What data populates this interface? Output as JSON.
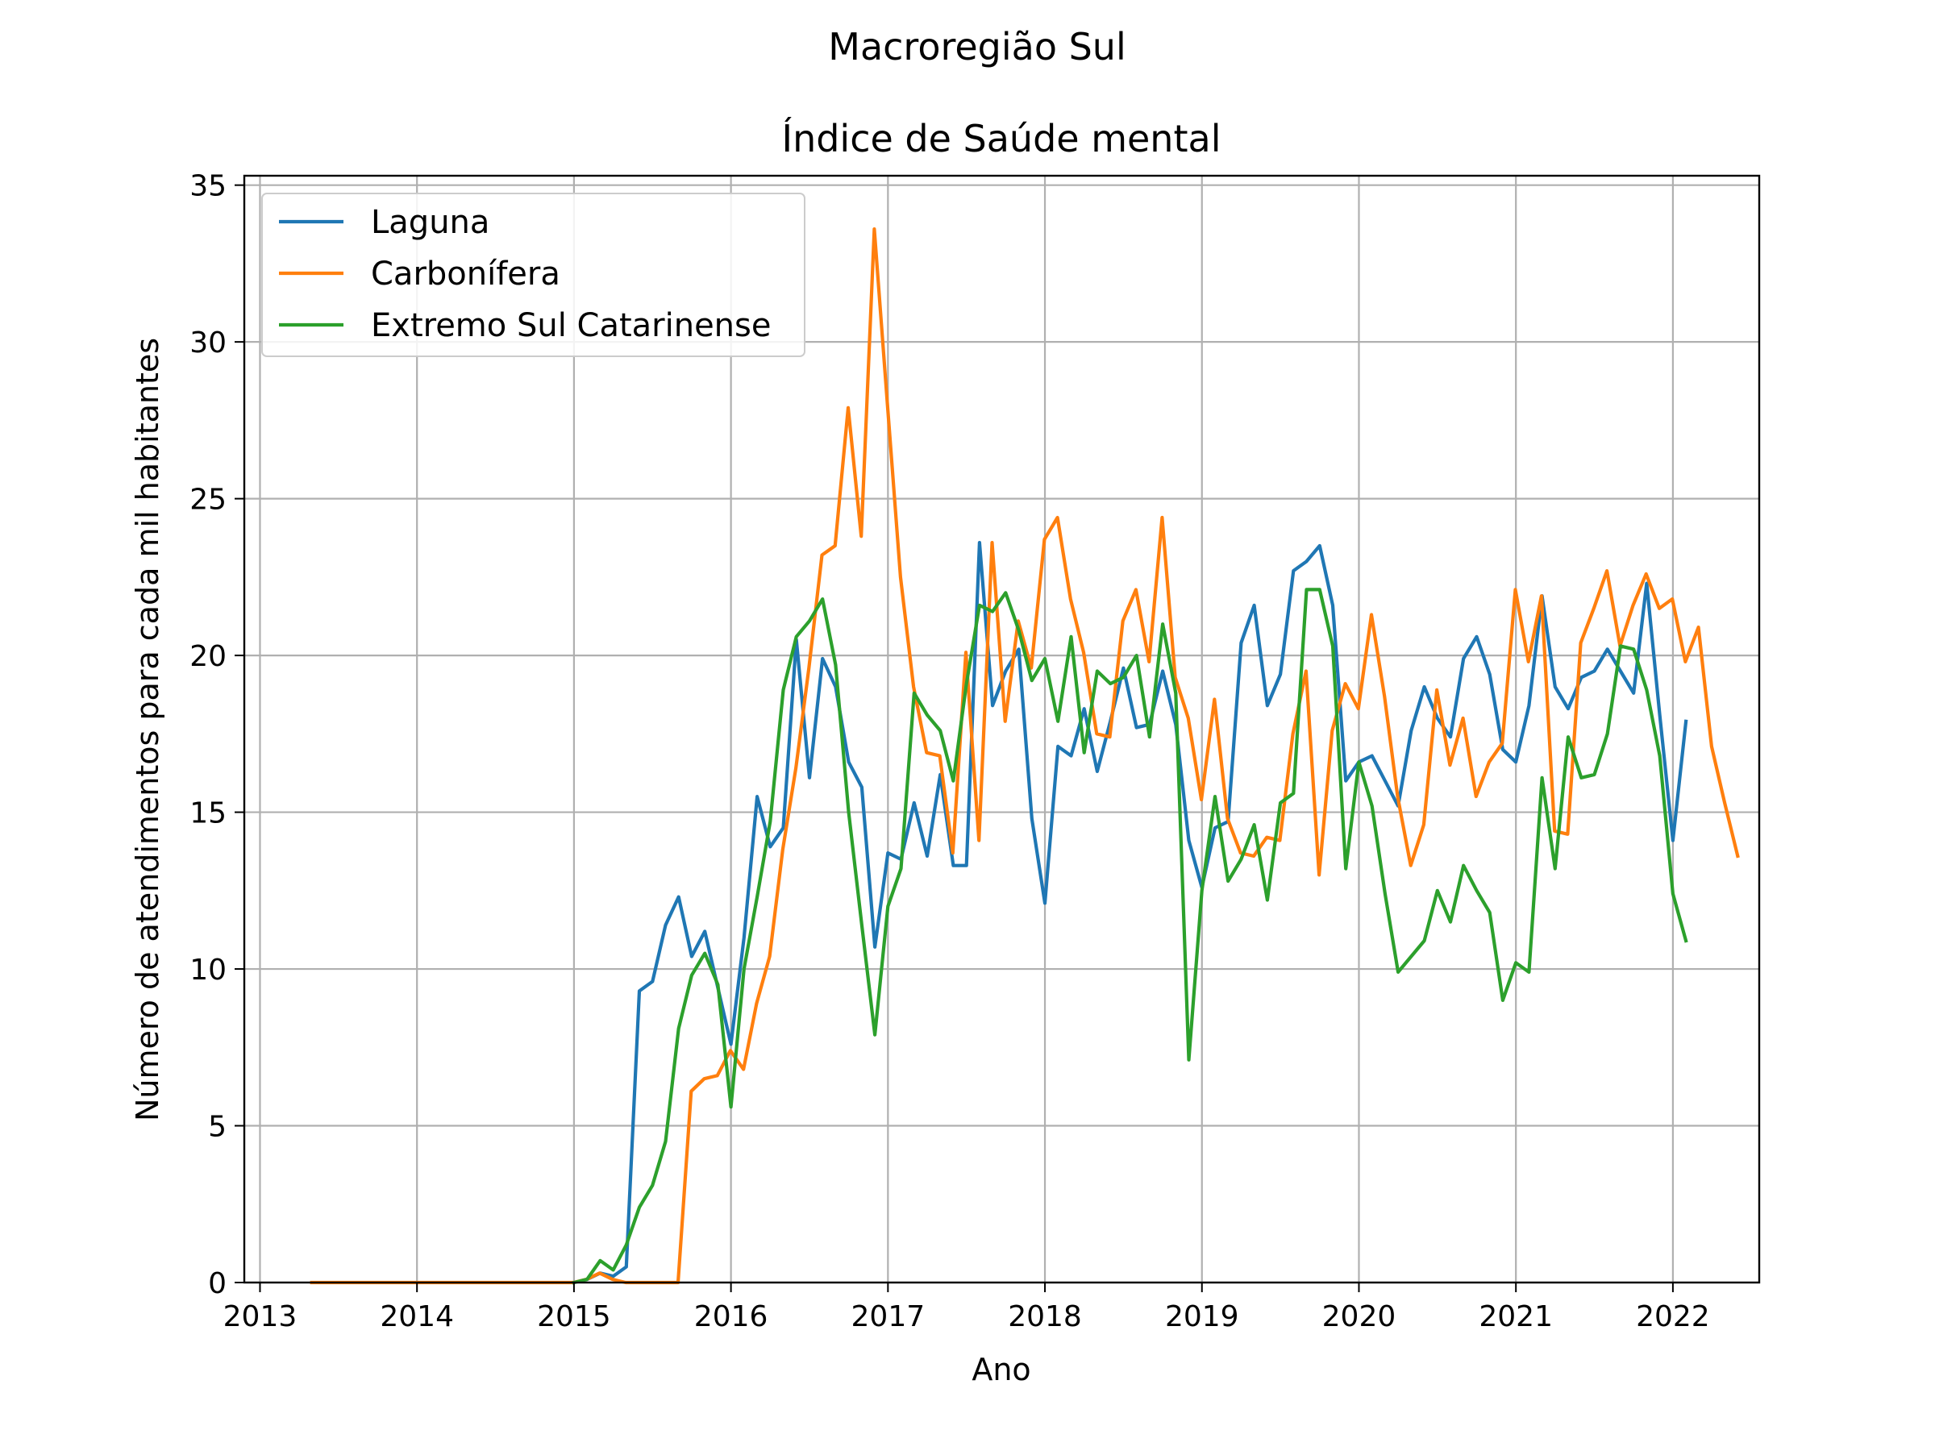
{
  "chart_data": {
    "type": "line",
    "suptitle": "Macroregião Sul",
    "title": "Índice de Saúde mental",
    "xlabel": "Ano",
    "ylabel": "Número de atendimentos para cada mil habitantes",
    "xlim": [
      2012.9,
      2022.55
    ],
    "ylim": [
      0,
      35.3
    ],
    "x_ticks": [
      2013,
      2014,
      2015,
      2016,
      2017,
      2018,
      2019,
      2020,
      2021,
      2022
    ],
    "x_tick_labels": [
      "2013",
      "2014",
      "2015",
      "2016",
      "2017",
      "2018",
      "2019",
      "2020",
      "2021",
      "2022"
    ],
    "y_ticks": [
      0,
      5,
      10,
      15,
      20,
      25,
      30,
      35
    ],
    "y_tick_labels": [
      "0",
      "5",
      "10",
      "15",
      "20",
      "25",
      "30",
      "35"
    ],
    "grid": true,
    "legend_position": "top-left",
    "series": [
      {
        "name": "Laguna",
        "color": "#1f77b4",
        "start": 2015.0,
        "step": 0.08333,
        "values": [
          0,
          0.1,
          0.3,
          0.2,
          0.5,
          9.3,
          9.6,
          11.4,
          12.3,
          10.4,
          11.2,
          9.4,
          7.6,
          11.0,
          15.5,
          13.9,
          14.5,
          20.5,
          16.1,
          19.9,
          19.0,
          16.6,
          15.8,
          10.7,
          13.7,
          13.5,
          15.3,
          13.6,
          16.2,
          13.3,
          13.3,
          23.6,
          18.4,
          19.5,
          20.2,
          14.8,
          12.1,
          17.1,
          16.8,
          18.3,
          16.3,
          17.9,
          19.6,
          17.7,
          17.8,
          19.5,
          17.8,
          14.1,
          12.6,
          14.5,
          14.7,
          20.4,
          21.6,
          18.4,
          19.4,
          22.7,
          23.0,
          23.5,
          21.6,
          16.0,
          16.6,
          16.8,
          16.0,
          15.2,
          17.6,
          19.0,
          18.0,
          17.4,
          19.9,
          20.6,
          19.4,
          17.0,
          16.6,
          18.4,
          21.9,
          19.0,
          18.3,
          19.3,
          19.5,
          20.2,
          19.5,
          18.8,
          22.3,
          18.1,
          14.1,
          17.9
        ]
      },
      {
        "name": "Carbonífera",
        "color": "#ff7f0e",
        "start": 2013.33,
        "step": 0.08333,
        "values": [
          0,
          0,
          0,
          0,
          0,
          0,
          0,
          0,
          0,
          0,
          0,
          0,
          0,
          0,
          0,
          0,
          0,
          0,
          0,
          0,
          0,
          0.1,
          0.3,
          0.1,
          0,
          0,
          0,
          0,
          0,
          6.1,
          6.5,
          6.6,
          7.4,
          6.8,
          8.9,
          10.4,
          13.8,
          16.4,
          19.6,
          23.2,
          23.5,
          27.9,
          23.8,
          33.6,
          28.0,
          22.5,
          19.0,
          16.9,
          16.8,
          13.7,
          20.1,
          14.1,
          23.6,
          17.9,
          21.1,
          19.6,
          23.7,
          24.4,
          21.8,
          20.1,
          17.5,
          17.4,
          21.1,
          22.1,
          19.8,
          24.4,
          19.3,
          18.0,
          15.4,
          18.6,
          14.8,
          13.7,
          13.6,
          14.2,
          14.1,
          17.5,
          19.5,
          13.0,
          17.6,
          19.1,
          18.3,
          21.3,
          18.7,
          15.5,
          13.3,
          14.6,
          18.9,
          16.5,
          18.0,
          15.5,
          16.6,
          17.2,
          22.1,
          19.8,
          21.9,
          14.4,
          14.3,
          20.4,
          21.5,
          22.7,
          20.3,
          21.6,
          22.6,
          21.5,
          21.8,
          19.8,
          20.9,
          17.1,
          15.3,
          13.6
        ]
      },
      {
        "name": "Extremo Sul Catarinense",
        "color": "#2ca02c",
        "start": 2015.0,
        "step": 0.08333,
        "values": [
          0,
          0.1,
          0.7,
          0.4,
          1.2,
          2.4,
          3.1,
          4.5,
          8.1,
          9.8,
          10.5,
          9.5,
          5.6,
          10.0,
          12.3,
          14.7,
          18.9,
          20.6,
          21.1,
          21.8,
          19.7,
          15.0,
          11.4,
          7.9,
          12.0,
          13.2,
          18.8,
          18.1,
          17.6,
          16.0,
          19.1,
          21.6,
          21.4,
          22.0,
          20.8,
          19.2,
          19.9,
          17.9,
          20.6,
          16.9,
          19.5,
          19.1,
          19.3,
          20.0,
          17.4,
          21.0,
          18.8,
          7.1,
          12.5,
          15.5,
          12.8,
          13.5,
          14.6,
          12.2,
          15.3,
          15.6,
          22.1,
          22.1,
          20.3,
          13.2,
          16.6,
          15.2,
          12.4,
          9.9,
          10.4,
          10.9,
          12.5,
          11.5,
          13.3,
          12.5,
          11.8,
          9.0,
          10.2,
          9.9,
          16.1,
          13.2,
          17.4,
          16.1,
          16.2,
          17.5,
          20.3,
          20.2,
          18.9,
          16.8,
          12.4,
          10.9
        ]
      }
    ]
  }
}
